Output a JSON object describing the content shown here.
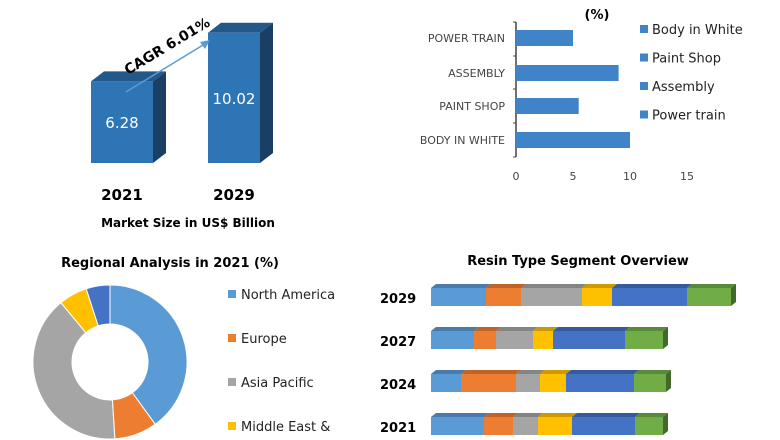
{
  "chart_data": [
    {
      "type": "bar",
      "categories": [
        "2021",
        "2029"
      ],
      "values": [
        6.28,
        10.02
      ],
      "data_labels": [
        "6.28",
        "10.02"
      ],
      "annotation": "CAGR 6.01%",
      "xlabel": "Market Size in US$ Billion",
      "color": "#2e75b6"
    },
    {
      "type": "bar",
      "orientation": "horizontal",
      "title": "(%)",
      "categories": [
        "BODY IN WHITE",
        "PAINT SHOP",
        "ASSEMBLY",
        "POWER TRAIN"
      ],
      "values": [
        10,
        5.5,
        9,
        5
      ],
      "xlim": [
        0,
        15
      ],
      "xticks": [
        "0",
        "5",
        "10",
        "15"
      ],
      "legend": [
        "Body in White",
        "Paint Shop",
        "Assembly",
        "Power train"
      ],
      "legend_position": "right",
      "color": "#3f84c9"
    },
    {
      "type": "pie",
      "donut": true,
      "title": "Regional Analysis in 2021 (%)",
      "slices": [
        {
          "name": "North America",
          "value": 40,
          "color": "#5b9bd5"
        },
        {
          "name": "Europe",
          "value": 9,
          "color": "#ed7d31"
        },
        {
          "name": "Asia Pacific",
          "value": 40,
          "color": "#a5a5a5"
        },
        {
          "name": "Middle East &",
          "value": 6,
          "color": "#ffc000"
        },
        {
          "value": 5,
          "color": "#4472c4"
        }
      ],
      "legend_position": "right"
    },
    {
      "type": "bar",
      "orientation": "horizontal",
      "stacked": true,
      "title": "Resin Type Segment Overview",
      "categories": [
        "2029",
        "2027",
        "2024",
        "2021"
      ],
      "series": [
        {
          "color": "#5b9bd5",
          "values": [
            55,
            43,
            30,
            53
          ]
        },
        {
          "color": "#ed7d31",
          "values": [
            35,
            22,
            55,
            29
          ]
        },
        {
          "color": "#a5a5a5",
          "values": [
            61,
            37,
            24,
            25
          ]
        },
        {
          "color": "#ffc000",
          "values": [
            30,
            20,
            26,
            34
          ]
        },
        {
          "color": "#4472c4",
          "values": [
            75,
            72,
            68,
            63
          ]
        },
        {
          "color": "#70ad47",
          "values": [
            44,
            38,
            32,
            28
          ]
        }
      ]
    }
  ]
}
